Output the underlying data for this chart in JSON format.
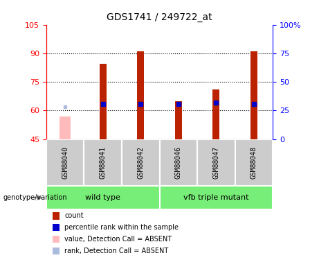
{
  "title": "GDS1741 / 249722_at",
  "samples": [
    "GSM88040",
    "GSM88041",
    "GSM88042",
    "GSM88046",
    "GSM88047",
    "GSM88048"
  ],
  "red_bar_values": [
    null,
    84.5,
    91.0,
    65.0,
    71.0,
    91.0
  ],
  "pink_bar_values": [
    57.0,
    null,
    null,
    null,
    null,
    null
  ],
  "blue_dot_values": [
    null,
    63.5,
    63.5,
    63.5,
    64.0,
    63.5
  ],
  "light_blue_dot_values": [
    62.0,
    null,
    null,
    null,
    null,
    null
  ],
  "ylim_left": [
    45,
    105
  ],
  "ylim_right": [
    0,
    100
  ],
  "yticks_left": [
    45,
    60,
    75,
    90,
    105
  ],
  "yticks_right": [
    0,
    25,
    50,
    75,
    100
  ],
  "ytick_labels_right": [
    "0",
    "25",
    "50",
    "75",
    "100%"
  ],
  "groups": [
    {
      "label": "wild type",
      "indices": [
        0,
        1,
        2
      ]
    },
    {
      "label": "vfb triple mutant",
      "indices": [
        3,
        4,
        5
      ]
    }
  ],
  "group_color": "#77ee77",
  "bar_color_red": "#bb2200",
  "bar_color_pink": "#ffbbbb",
  "dot_color_blue": "#0000cc",
  "dot_color_light_blue": "#aabbdd",
  "sample_box_color": "#cccccc",
  "legend_items": [
    {
      "color": "#bb2200",
      "label": "count"
    },
    {
      "color": "#0000cc",
      "label": "percentile rank within the sample"
    },
    {
      "color": "#ffbbbb",
      "label": "value, Detection Call = ABSENT"
    },
    {
      "color": "#aabbdd",
      "label": "rank, Detection Call = ABSENT"
    }
  ],
  "genotype_label": "genotype/variation",
  "red_bar_width": 0.18,
  "pink_bar_width": 0.3
}
